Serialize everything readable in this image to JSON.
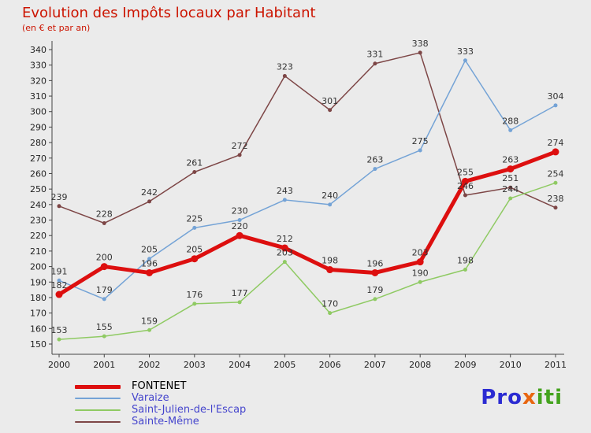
{
  "title": {
    "text": "Evolution des Impôts locaux par Habitant",
    "color": "#cc1400"
  },
  "subtitle": {
    "text": "(en € et par an)",
    "color": "#cc1400"
  },
  "axis": {
    "color": "#444444",
    "tick_label_color": "#222222",
    "value_label_color": "#333333"
  },
  "chart_data": {
    "type": "line",
    "title": "Evolution des Impôts locaux par Habitant",
    "subtitle": "(en € et par an)",
    "x": [
      "2000",
      "2001",
      "2002",
      "2003",
      "2004",
      "2005",
      "2006",
      "2007",
      "2008",
      "2009",
      "2010",
      "2011"
    ],
    "series": [
      {
        "name": "FONTENET",
        "color": "#dd0f0f",
        "line_width": 5,
        "marker_radius": 4.5,
        "values": [
          182,
          200,
          196,
          205,
          220,
          212,
          198,
          196,
          203,
          255,
          263,
          274
        ]
      },
      {
        "name": "Varaize",
        "color": "#74a3d6",
        "line_width": 1.5,
        "marker_radius": 2.5,
        "values": [
          191,
          179,
          205,
          225,
          230,
          243,
          240,
          263,
          275,
          333,
          288,
          304
        ]
      },
      {
        "name": "Saint-Julien-de-l'Escap",
        "color": "#8fca63",
        "line_width": 1.5,
        "marker_radius": 2.5,
        "values": [
          153,
          155,
          159,
          176,
          177,
          203,
          170,
          179,
          190,
          198,
          244,
          254
        ]
      },
      {
        "name": "Sainte-Même",
        "color": "#7d4646",
        "line_width": 1.5,
        "marker_radius": 2.5,
        "values": [
          239,
          228,
          242,
          261,
          272,
          323,
          301,
          331,
          338,
          246,
          251,
          238
        ]
      }
    ],
    "ylim": [
      150,
      340
    ],
    "ytick_step": 10,
    "xlabel": "",
    "ylabel": "",
    "grid": false,
    "value_labels": true,
    "legend_position": "bottom-left"
  },
  "legend": {
    "items": [
      {
        "label": "FONTENET",
        "text_color": "#000000",
        "series": 0
      },
      {
        "label": "Varaize",
        "text_color": "#4646cd",
        "series": 1
      },
      {
        "label": "Saint-Julien-de-l'Escap",
        "text_color": "#4646cd",
        "series": 2
      },
      {
        "label": "Sainte-Même",
        "text_color": "#4646cd",
        "series": 3
      }
    ]
  },
  "logo": {
    "parts": [
      {
        "text": "Pro",
        "color": "#2b2bd2"
      },
      {
        "text": "x",
        "color": "#e8650f"
      },
      {
        "text": "iti",
        "color": "#44a31e"
      }
    ]
  }
}
